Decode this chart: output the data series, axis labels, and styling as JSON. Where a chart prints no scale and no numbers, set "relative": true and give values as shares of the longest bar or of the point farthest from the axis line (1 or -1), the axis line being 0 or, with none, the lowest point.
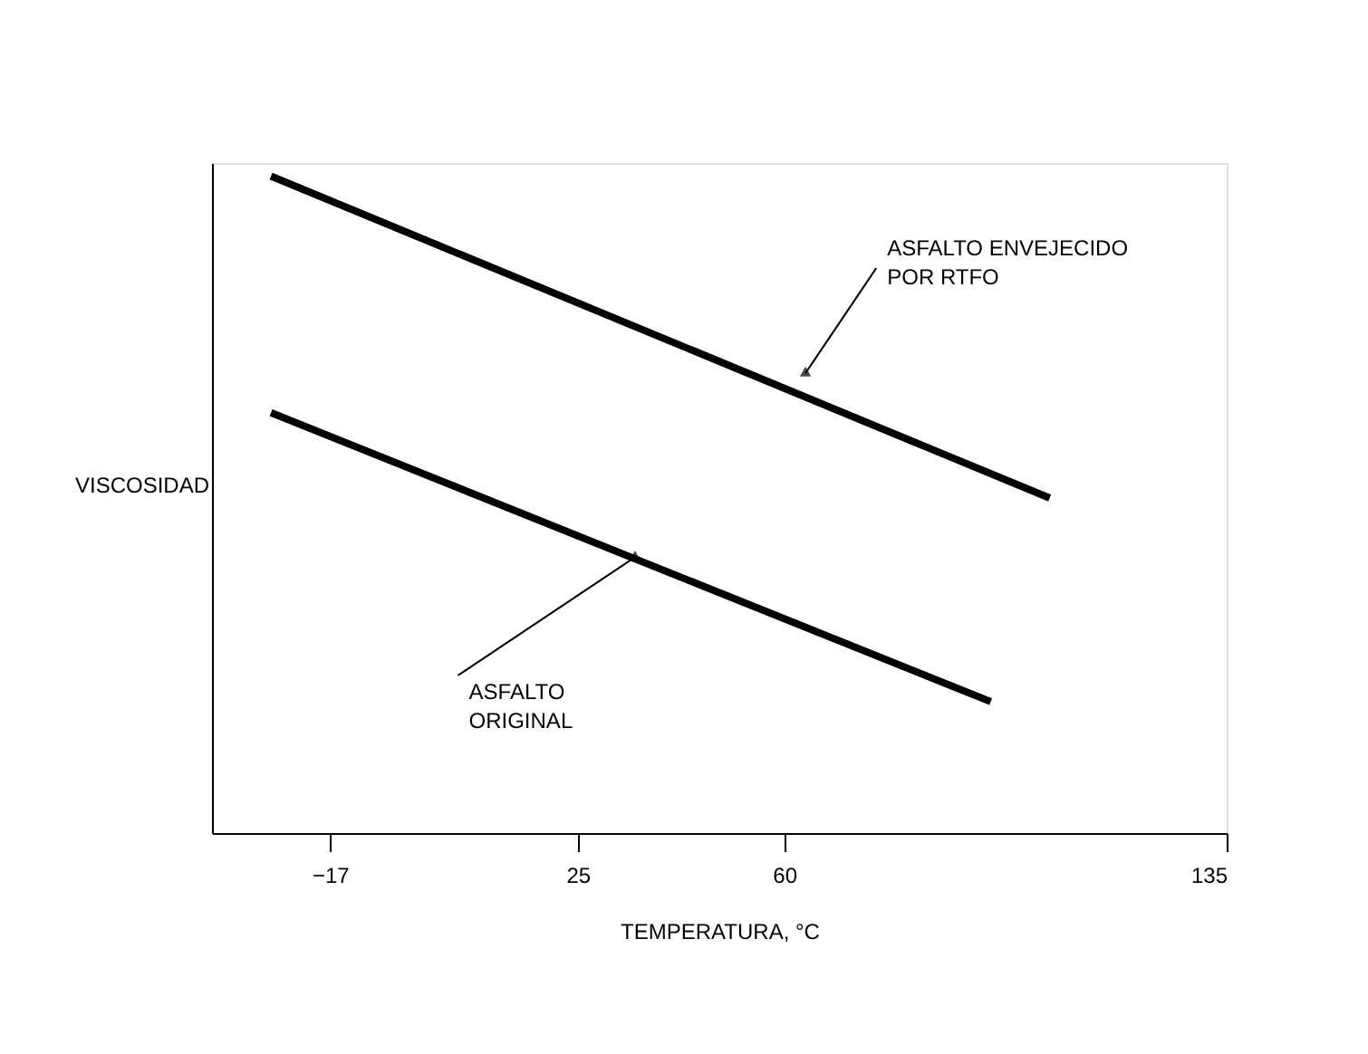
{
  "chart_data": {
    "type": "line",
    "relative": true,
    "xlabel": "TEMPERATURA, °C",
    "ylabel": "VISCOSIDAD",
    "xlim": [
      -37,
      135
    ],
    "xticks": [
      -17,
      25,
      60,
      135
    ],
    "grid": false,
    "marker": "none",
    "line_style": "solid",
    "series": [
      {
        "color": "#000000",
        "x": [
          -27,
          105
        ],
        "values": [
          1,
          0.51
        ]
      },
      {
        "color": "#000000",
        "x": [
          -27,
          95
        ],
        "values": [
          0.64,
          0.2
        ]
      }
    ],
    "annotations": [
      {
        "text": "ASFALTO ENVEJECIDO\nPOR RTFO",
        "x": 63.6,
        "y": 0.7
      },
      {
        "text": "ASFALTO\nORIGINAL",
        "x": 34.7,
        "y": 0.42
      }
    ]
  }
}
